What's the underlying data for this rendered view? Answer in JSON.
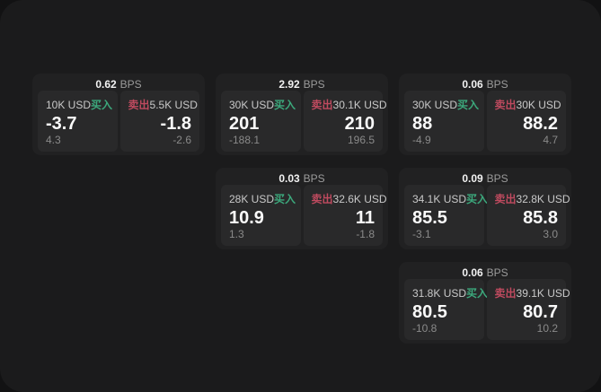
{
  "labels": {
    "bps_unit": "BPS",
    "buy": "买入",
    "sell": "卖出"
  },
  "colors": {
    "buy": "#3ca87c",
    "sell": "#bf4a5f",
    "window_bg": "#1b1b1c",
    "card_bg": "#212122",
    "pane_bg": "#29292a"
  },
  "cards": [
    {
      "bps": "0.62",
      "buy": {
        "size": "10K USD",
        "price": "-3.7",
        "delta": "4.3"
      },
      "sell": {
        "size": "5.5K USD",
        "price": "-1.8",
        "delta": "-2.6"
      }
    },
    {
      "bps": "2.92",
      "buy": {
        "size": "30K USD",
        "price": "201",
        "delta": "-188.1"
      },
      "sell": {
        "size": "30.1K USD",
        "price": "210",
        "delta": "196.5"
      }
    },
    {
      "bps": "0.06",
      "buy": {
        "size": "30K USD",
        "price": "88",
        "delta": "-4.9"
      },
      "sell": {
        "size": "30K USD",
        "price": "88.2",
        "delta": "4.7"
      }
    },
    {
      "bps": "0.03",
      "buy": {
        "size": "28K USD",
        "price": "10.9",
        "delta": "1.3"
      },
      "sell": {
        "size": "32.6K USD",
        "price": "11",
        "delta": "-1.8"
      }
    },
    {
      "bps": "0.09",
      "buy": {
        "size": "34.1K USD",
        "price": "85.5",
        "delta": "-3.1"
      },
      "sell": {
        "size": "32.8K USD",
        "price": "85.8",
        "delta": "3.0"
      }
    },
    {
      "bps": "0.06",
      "buy": {
        "size": "31.8K USD",
        "price": "80.5",
        "delta": "-10.8"
      },
      "sell": {
        "size": "39.1K USD",
        "price": "80.7",
        "delta": "10.2"
      }
    }
  ]
}
